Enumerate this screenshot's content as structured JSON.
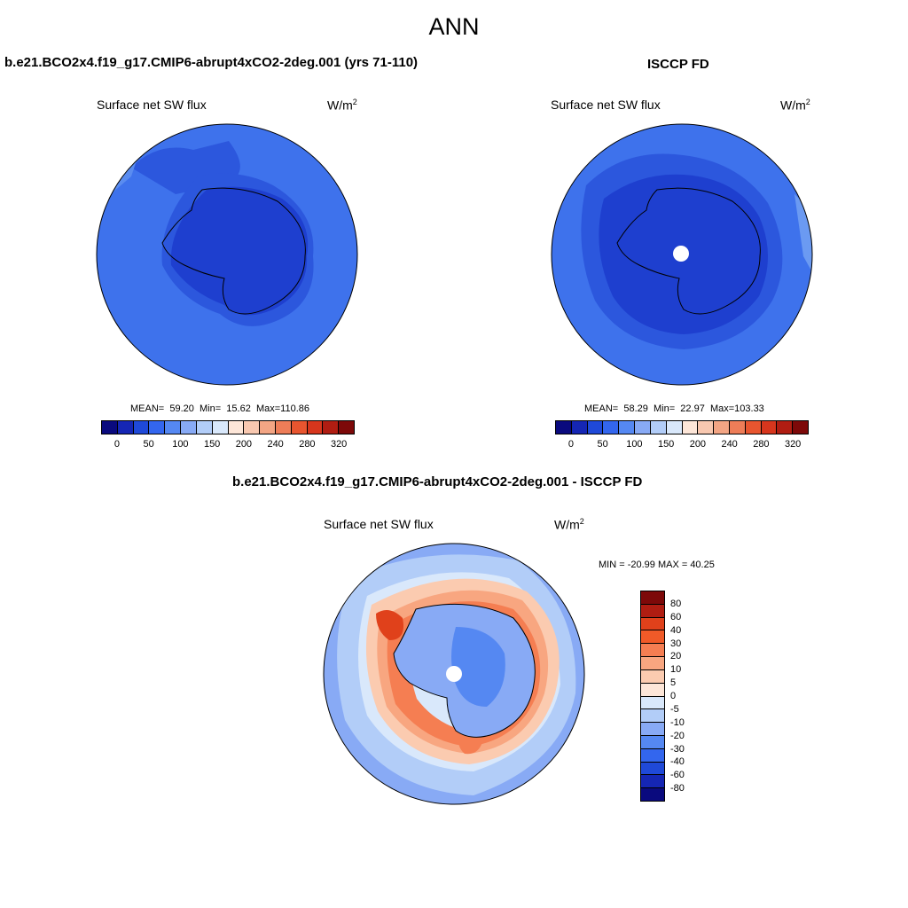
{
  "figure": {
    "title": "ANN"
  },
  "panel_model": {
    "case_title": "b.e21.BCO2x4.f19_g17.CMIP6-abrupt4xCO2-2deg.001 (yrs 71-110)",
    "variable": "Surface net SW flux",
    "units_base": "W/m",
    "units_exp": "2",
    "stats": {
      "mean_label": "MEAN=",
      "mean": "59.20",
      "min_label": "Min=",
      "min": "15.62",
      "max_label": "Max=",
      "max": "110.86"
    }
  },
  "panel_obs": {
    "case_title": "ISCCP FD",
    "variable": "Surface net SW flux",
    "units_base": "W/m",
    "units_exp": "2",
    "stats": {
      "mean_label": "MEAN=",
      "mean": "58.29",
      "min_label": "Min=",
      "min": "22.97",
      "max_label": "Max=",
      "max": "103.33"
    }
  },
  "panel_diff": {
    "case_title": "b.e21.BCO2x4.f19_g17.CMIP6-abrupt4xCO2-2deg.001 - ISCCP FD",
    "variable": "Surface net SW flux",
    "units_base": "W/m",
    "units_exp": "2",
    "minmax": "MIN = -20.99 MAX =  40.25"
  },
  "colorbar_abs": {
    "colors": [
      "#0a0a7e",
      "#1526b4",
      "#1f49d8",
      "#3366ee",
      "#5588f2",
      "#88aaf5",
      "#b2cdf8",
      "#d9e8fb",
      "#fde6d8",
      "#f8c8b0",
      "#f3a584",
      "#ee7d58",
      "#e8552f",
      "#d7361d",
      "#b01d12",
      "#7d0909"
    ],
    "ticks": [
      "0",
      "50",
      "100",
      "150",
      "200",
      "240",
      "280",
      "320"
    ]
  },
  "colorbar_diff": {
    "colors": [
      "#7d0909",
      "#b01d12",
      "#e0411b",
      "#f05a28",
      "#f57e52",
      "#f8a680",
      "#fbcbb0",
      "#fde6d8",
      "#d9e8fb",
      "#b2cdf8",
      "#88aaf5",
      "#5588f2",
      "#3366ee",
      "#1f49d8",
      "#1526b4",
      "#0a0a7e"
    ],
    "ticks": [
      "80",
      "60",
      "40",
      "30",
      "20",
      "10",
      "5",
      "0",
      "-5",
      "-10",
      "-20",
      "-30",
      "-40",
      "-60",
      "-80"
    ]
  },
  "map_colors": {
    "model_ocean": "#3e72ec",
    "model_mid": "#2c57dd",
    "model_ice": "#1e3fcf",
    "model_light": "#5a8cf0",
    "obs_ocean": "#3e72ec",
    "obs_mid": "#2c57dd",
    "obs_ice": "#1e3fcf",
    "obs_light": "#6b9af2",
    "diff_base": "#88aaf5",
    "diff_light": "#b2cdf8",
    "diff_pale": "#d9e8fb",
    "diff_pos1": "#fbcbb0",
    "diff_pos2": "#f8a680",
    "diff_pos3": "#f57e52",
    "diff_pos4": "#e0411b",
    "diff_ice": "#88aaf5",
    "diff_ice_dark": "#5588f2"
  }
}
